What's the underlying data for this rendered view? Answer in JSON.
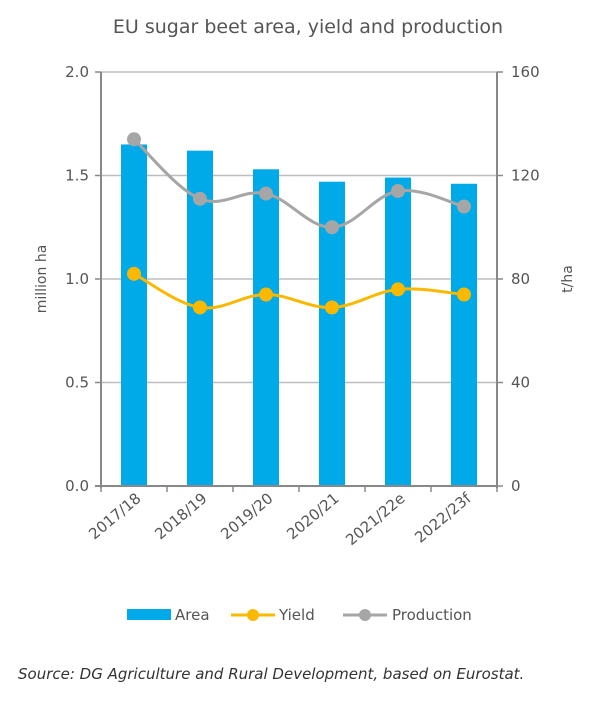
{
  "chart_data": {
    "type": "bar",
    "title": "EU sugar beet area, yield and production",
    "categories": [
      "2017/18",
      "2018/19",
      "2019/20",
      "2020/21",
      "2021/22e",
      "2022/23f"
    ],
    "series": [
      {
        "name": "Area",
        "kind": "bar",
        "axis": "left",
        "color": "#00a9e8",
        "values": [
          1.65,
          1.62,
          1.53,
          1.47,
          1.49,
          1.46
        ]
      },
      {
        "name": "Yield",
        "kind": "line",
        "axis": "right",
        "color": "#fbb800",
        "values": [
          82,
          69,
          74,
          69,
          76,
          74
        ]
      },
      {
        "name": "Production",
        "kind": "line",
        "axis": "left-scaled",
        "color": "#a6a6a6",
        "values": [
          134,
          111,
          113,
          100,
          114,
          108
        ]
      }
    ],
    "ylabel": "million ha",
    "y2label": "t/ha",
    "ylim": [
      0,
      2.0
    ],
    "y2lim": [
      0,
      160
    ],
    "yticks": [
      "0.0",
      "0.5",
      "1.0",
      "1.5",
      "2.0"
    ],
    "y2ticks": [
      "0",
      "40",
      "80",
      "120",
      "160"
    ],
    "grid": true,
    "legend": {
      "position": "bottom",
      "entries": [
        "Area",
        "Yield",
        "Production"
      ]
    },
    "axis_color": "#888888",
    "grid_color": "#bdbdbd"
  },
  "footer": {
    "source": "Source: DG Agriculture and Rural Development, based on Eurostat."
  }
}
